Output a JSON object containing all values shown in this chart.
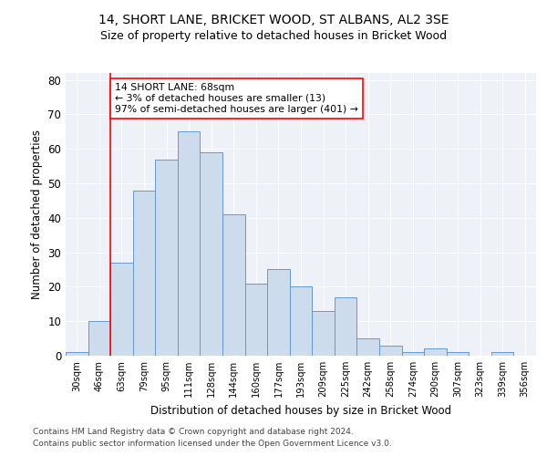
{
  "title1": "14, SHORT LANE, BRICKET WOOD, ST ALBANS, AL2 3SE",
  "title2": "Size of property relative to detached houses in Bricket Wood",
  "xlabel": "Distribution of detached houses by size in Bricket Wood",
  "ylabel": "Number of detached properties",
  "categories": [
    "30sqm",
    "46sqm",
    "63sqm",
    "79sqm",
    "95sqm",
    "111sqm",
    "128sqm",
    "144sqm",
    "160sqm",
    "177sqm",
    "193sqm",
    "209sqm",
    "225sqm",
    "242sqm",
    "258sqm",
    "274sqm",
    "290sqm",
    "307sqm",
    "323sqm",
    "339sqm",
    "356sqm"
  ],
  "values": [
    1,
    10,
    27,
    48,
    57,
    65,
    59,
    41,
    21,
    25,
    20,
    13,
    17,
    5,
    3,
    1,
    2,
    1,
    0,
    1,
    0
  ],
  "bar_color": "#ccdcec",
  "bar_edge_color": "#6699cc",
  "background_color": "#eef2f8",
  "red_line_index": 2,
  "annotation_title": "14 SHORT LANE: 68sqm",
  "annotation_line1": "← 3% of detached houses are smaller (13)",
  "annotation_line2": "97% of semi-detached houses are larger (401) →",
  "footnote1": "Contains HM Land Registry data © Crown copyright and database right 2024.",
  "footnote2": "Contains public sector information licensed under the Open Government Licence v3.0.",
  "ylim": [
    0,
    82
  ],
  "yticks": [
    0,
    10,
    20,
    30,
    40,
    50,
    60,
    70,
    80
  ]
}
